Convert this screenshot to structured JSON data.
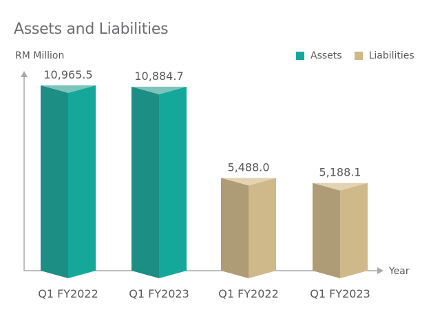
{
  "chart_data": {
    "type": "bar",
    "title": "Assets and Liabilities",
    "ylabel": "RM Million",
    "xlabel": "Year",
    "categories": [
      "Q1 FY2022",
      "Q1 FY2023",
      "Q1 FY2022",
      "Q1 FY2023"
    ],
    "values": [
      10965.5,
      10884.7,
      5488.0,
      5188.1
    ],
    "value_labels": [
      "10,965.5",
      "10,884.7",
      "5,488.0",
      "5,188.1"
    ],
    "bar_series": [
      "Assets",
      "Assets",
      "Liabilities",
      "Liabilities"
    ],
    "series": [
      {
        "name": "Assets",
        "color": "#15a89a",
        "values": [
          10965.5,
          10884.7,
          null,
          null
        ]
      },
      {
        "name": "Liabilities",
        "color": "#cfb98a",
        "values": [
          null,
          null,
          5488.0,
          5188.1
        ]
      }
    ],
    "ylim": [
      0,
      11000
    ],
    "grid": false,
    "legend_position": "top-right",
    "style": "3d-prism-bars"
  },
  "colors": {
    "assets_front": "#15a89a",
    "assets_side": "#1d8e84",
    "assets_top": "#7dc4bc",
    "liabilities_front": "#cfb98a",
    "liabilities_side": "#ad9c75",
    "liabilities_top": "#e2d3b2",
    "axis": "#a7a9ac",
    "text": "#58595b"
  }
}
